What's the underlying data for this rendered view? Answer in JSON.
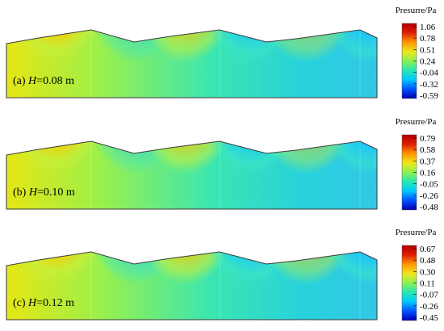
{
  "panels": [
    {
      "label_prefix": "(a) ",
      "label_var": "H",
      "label_value": "=0.08 m",
      "colorbar": {
        "title": "Presurre/Pa",
        "ticks": [
          "1.06",
          "0.78",
          "0.51",
          "0.24",
          "-0.04",
          "-0.32",
          "-0.59"
        ]
      },
      "lobes": [
        {
          "sign": "pos",
          "strength": 1.0
        },
        {
          "sign": "neg",
          "strength": 0.55
        },
        {
          "sign": "pos",
          "strength": 0.85
        },
        {
          "sign": "neg",
          "strength": 0.75
        },
        {
          "sign": "pos",
          "strength": 0.55
        },
        {
          "sign": "neg",
          "strength": 0.7
        }
      ]
    },
    {
      "label_prefix": "(b) ",
      "label_var": "H",
      "label_value": "=0.10 m",
      "colorbar": {
        "title": "Presurre/Pa",
        "ticks": [
          "0.79",
          "0.58",
          "0.37",
          "0.16",
          "-0.05",
          "-0.26",
          "-0.48"
        ]
      },
      "lobes": [
        {
          "sign": "pos",
          "strength": 1.0
        },
        {
          "sign": "neg",
          "strength": 0.55
        },
        {
          "sign": "pos",
          "strength": 0.9
        },
        {
          "sign": "neg",
          "strength": 0.8
        },
        {
          "sign": "pos",
          "strength": 0.6
        },
        {
          "sign": "neg",
          "strength": 0.75
        }
      ]
    },
    {
      "label_prefix": "(c) ",
      "label_var": "H",
      "label_value": "=0.12 m",
      "colorbar": {
        "title": "Presurre/Pa",
        "ticks": [
          "0.67",
          "0.48",
          "0.30",
          "0.11",
          "-0.07",
          "-0.26",
          "-0.45"
        ]
      },
      "lobes": [
        {
          "sign": "pos",
          "strength": 1.0
        },
        {
          "sign": "neg",
          "strength": 0.6
        },
        {
          "sign": "pos",
          "strength": 0.95
        },
        {
          "sign": "neg",
          "strength": 0.85
        },
        {
          "sign": "pos",
          "strength": 0.65
        },
        {
          "sign": "neg",
          "strength": 0.8
        }
      ]
    }
  ],
  "colormap": [
    "#0000b4",
    "#0050ff",
    "#00c8ff",
    "#28e6b4",
    "#8cf050",
    "#f0e61e",
    "#ff9600",
    "#dc1e00",
    "#b40000"
  ]
}
